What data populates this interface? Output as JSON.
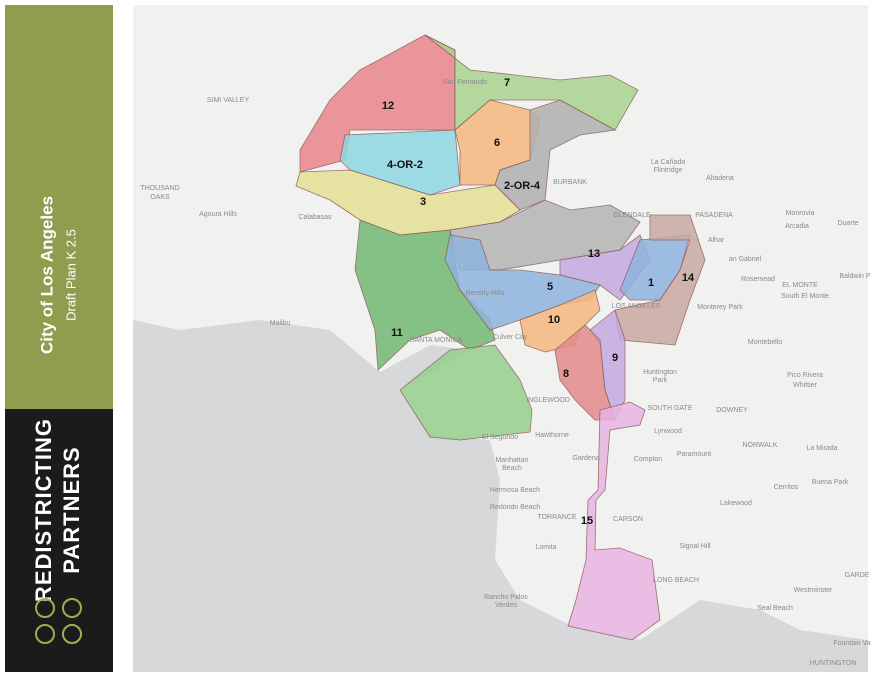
{
  "sidebar": {
    "title": "City of Los Angeles",
    "subtitle": "Draft Plan K 2.5",
    "logo": [
      "REDISTRICTING",
      "PARTNERS"
    ]
  },
  "districts": [
    "12",
    "7",
    "6",
    "2-OR-4",
    "4-OR-2",
    "3",
    "11",
    "13",
    "5",
    "1",
    "14",
    "10",
    "9",
    "8",
    "15"
  ],
  "places": [
    "SIMI VALLEY",
    "THOUSAND",
    "OAKS",
    "Agoura Hills",
    "Calabasas",
    "Malibu",
    "San Fernando",
    "La Cañada",
    "Flintridge",
    "Altadena",
    "BURBANK",
    "GLENDALE",
    "PASADENA",
    "Monrovia",
    "Arcadia",
    "Duarte",
    "Alhar",
    "an Gabriel",
    "EL MONTE",
    "Rosemead",
    "South El Monte",
    "Baldwin P",
    "Monterey Park",
    "LOS ANGELES",
    "Beverly Hills",
    "SANTA MONICA",
    "Culver City",
    "Montebello",
    "Huntington",
    "Park",
    "Pico Rivera",
    "Whittier",
    "INGLEWOOD",
    "SOUTH GATE",
    "DOWNEY",
    "Lynwood",
    "El Segundo",
    "Hawthorne",
    "NORWALK",
    "La Mirada",
    "Manhattan",
    "Beach",
    "Gardena",
    "Compton",
    "Paramount",
    "Hermosa Beach",
    "Redondo Beach",
    "Buena Park",
    "Cerritos",
    "Lakewood",
    "TORRANCE",
    "CARSON",
    "Lomita",
    "Signal Hill",
    "LONG BEACH",
    "Rancho Palos",
    "Verdes",
    "Westminster",
    "GARDE",
    "Seal Beach",
    "Fountain Va",
    "HUNTINGTON"
  ]
}
